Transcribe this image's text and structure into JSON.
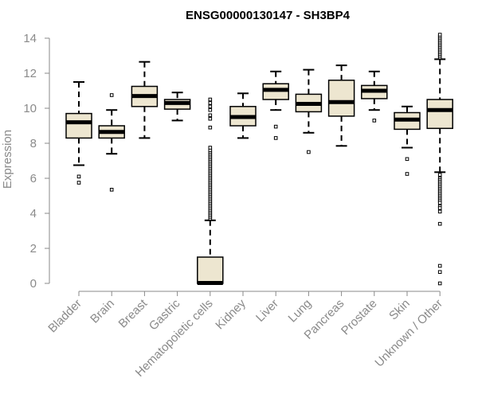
{
  "chart_data": {
    "type": "box",
    "title": "ENSG00000130147 - SH3BP4",
    "xlabel": "",
    "ylabel": "Expression",
    "ylim": [
      0,
      14
    ],
    "yticks": [
      0,
      2,
      4,
      6,
      8,
      10,
      12,
      14
    ],
    "categories": [
      "Bladder",
      "Brain",
      "Breast",
      "Gastric",
      "Hematopoietic cells",
      "Kidney",
      "Liver",
      "Lung",
      "Pancreas",
      "Prostate",
      "Skin",
      "Unknown / Other"
    ],
    "boxes": [
      {
        "whisker_low": 6.75,
        "q1": 8.3,
        "median": 9.2,
        "q3": 9.7,
        "whisker_high": 11.5,
        "outliers": [
          6.1,
          5.75
        ]
      },
      {
        "whisker_low": 7.4,
        "q1": 8.3,
        "median": 8.65,
        "q3": 9.0,
        "whisker_high": 9.9,
        "outliers": [
          10.75,
          5.35
        ]
      },
      {
        "whisker_low": 8.3,
        "q1": 10.1,
        "median": 10.7,
        "q3": 11.25,
        "whisker_high": 12.65,
        "outliers": []
      },
      {
        "whisker_low": 9.3,
        "q1": 9.95,
        "median": 10.3,
        "q3": 10.5,
        "whisker_high": 10.9,
        "outliers": []
      },
      {
        "whisker_low": 0,
        "q1": 0,
        "median": 0.02,
        "q3": 1.5,
        "whisker_high": 3.6,
        "outliers": [
          3.7,
          3.8,
          3.9,
          4.0,
          4.1,
          4.2,
          4.3,
          4.4,
          4.5,
          4.6,
          4.7,
          4.8,
          4.9,
          5.0,
          5.1,
          5.2,
          5.3,
          5.4,
          5.5,
          5.6,
          5.7,
          5.8,
          5.9,
          6.0,
          6.1,
          6.2,
          6.3,
          6.4,
          6.5,
          6.6,
          6.7,
          6.8,
          6.9,
          7.0,
          7.1,
          7.2,
          7.3,
          7.4,
          7.5,
          7.6,
          7.75,
          8.9,
          9.4,
          9.6,
          9.9,
          10.1,
          10.3,
          10.5
        ]
      },
      {
        "whisker_low": 8.3,
        "q1": 9.0,
        "median": 9.5,
        "q3": 10.1,
        "whisker_high": 10.85,
        "outliers": []
      },
      {
        "whisker_low": 9.9,
        "q1": 10.5,
        "median": 11.05,
        "q3": 11.4,
        "whisker_high": 12.1,
        "outliers": [
          8.95,
          8.3
        ]
      },
      {
        "whisker_low": 8.6,
        "q1": 9.8,
        "median": 10.25,
        "q3": 10.8,
        "whisker_high": 12.2,
        "outliers": [
          7.5
        ]
      },
      {
        "whisker_low": 7.85,
        "q1": 9.55,
        "median": 10.35,
        "q3": 11.6,
        "whisker_high": 12.45,
        "outliers": []
      },
      {
        "whisker_low": 9.9,
        "q1": 10.55,
        "median": 11.0,
        "q3": 11.3,
        "whisker_high": 12.1,
        "outliers": [
          9.3
        ]
      },
      {
        "whisker_low": 7.75,
        "q1": 8.8,
        "median": 9.35,
        "q3": 9.75,
        "whisker_high": 10.1,
        "outliers": [
          7.1,
          6.25
        ]
      },
      {
        "whisker_low": 6.35,
        "q1": 8.85,
        "median": 9.9,
        "q3": 10.5,
        "whisker_high": 12.8,
        "outliers": [
          12.9,
          13.0,
          13.1,
          13.2,
          13.3,
          13.4,
          13.5,
          13.6,
          13.7,
          13.8,
          13.9,
          14.0,
          14.1,
          14.2,
          6.2,
          6.0,
          5.9,
          5.8,
          5.7,
          5.6,
          5.5,
          5.4,
          5.3,
          5.2,
          5.1,
          5.0,
          4.9,
          4.8,
          4.7,
          4.6,
          4.4,
          4.3,
          4.1,
          3.4,
          1.0,
          0.65,
          0.0
        ]
      }
    ],
    "box_fill": "#ede6d0",
    "grid": false,
    "legend": "none"
  }
}
